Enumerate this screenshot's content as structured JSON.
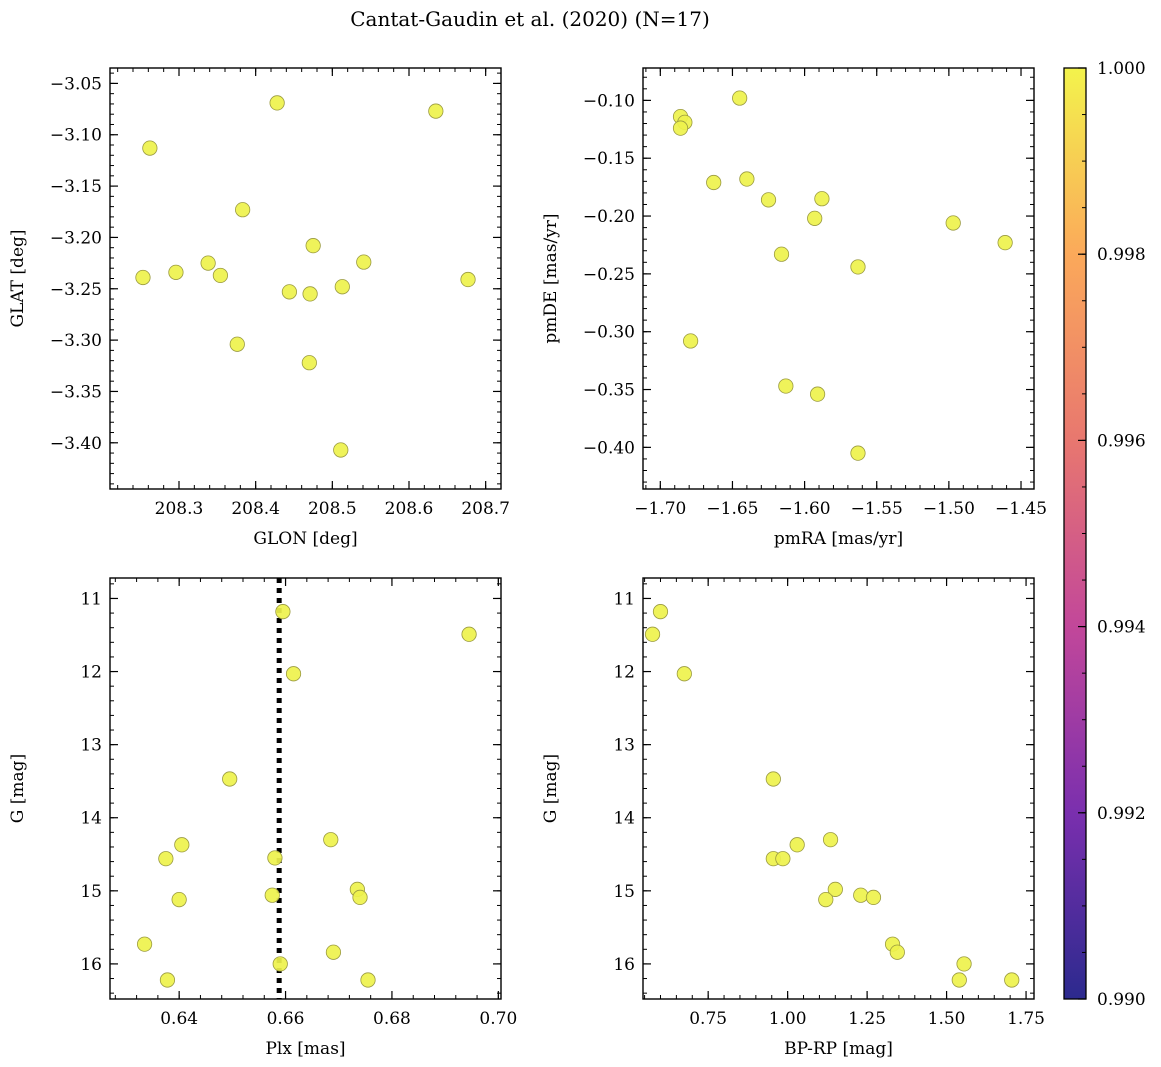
{
  "chart_data": {
    "type": "scatter",
    "title": "Cantat-Gaudin et al. (2020) (N=17)",
    "point_color": "#eef24c",
    "point_edge": "#9a9a40",
    "colorbar": {
      "range": [
        0.99,
        1.0
      ],
      "ticks": [
        "0.990",
        "0.992",
        "0.994",
        "0.996",
        "0.998",
        "1.000"
      ],
      "tick_values": [
        0.99,
        0.992,
        0.994,
        0.996,
        0.998,
        1.0
      ],
      "colors": [
        "#2c2a8e",
        "#7a2fae",
        "#c2479a",
        "#e8776f",
        "#fba95a",
        "#f3f34c"
      ]
    },
    "panels": [
      {
        "id": "glon-glat",
        "xlabel": "GLON [deg]",
        "ylabel": "GLAT [deg]",
        "xlim": [
          208.21,
          208.72
        ],
        "ylim": [
          -3.445,
          -3.035
        ],
        "yinvert": false,
        "xticks": [
          208.3,
          208.4,
          208.5,
          208.6,
          208.7
        ],
        "xticklabels": [
          "208.3",
          "208.4",
          "208.5",
          "208.6",
          "208.7"
        ],
        "yticks": [
          -3.05,
          -3.1,
          -3.15,
          -3.2,
          -3.25,
          -3.3,
          -3.35,
          -3.4
        ],
        "yticklabels": [
          "−3.05",
          "−3.10",
          "−3.15",
          "−3.20",
          "−3.25",
          "−3.30",
          "−3.35",
          "−3.40"
        ],
        "x": [
          208.262,
          208.428,
          208.635,
          208.383,
          208.475,
          208.541,
          208.253,
          208.296,
          208.338,
          208.354,
          208.444,
          208.471,
          208.513,
          208.677,
          208.376,
          208.47,
          208.511
        ],
        "y": [
          -3.113,
          -3.069,
          -3.077,
          -3.173,
          -3.208,
          -3.224,
          -3.239,
          -3.234,
          -3.225,
          -3.237,
          -3.253,
          -3.255,
          -3.248,
          -3.241,
          -3.304,
          -3.322,
          -3.407
        ]
      },
      {
        "id": "pm",
        "xlabel": "pmRA [mas/yr]",
        "ylabel": "pmDE [mas/yr]",
        "xlim": [
          -1.712,
          -1.441
        ],
        "ylim": [
          -0.436,
          -0.072
        ],
        "yinvert": false,
        "xticks": [
          -1.7,
          -1.65,
          -1.6,
          -1.55,
          -1.5,
          -1.45
        ],
        "xticklabels": [
          "−1.70",
          "−1.65",
          "−1.60",
          "−1.55",
          "−1.50",
          "−1.45"
        ],
        "yticks": [
          -0.1,
          -0.15,
          -0.2,
          -0.25,
          -0.3,
          -0.35,
          -0.4
        ],
        "yticklabels": [
          "−0.10",
          "−0.15",
          "−0.20",
          "−0.25",
          "−0.30",
          "−0.35",
          "−0.40"
        ],
        "x": [
          -1.686,
          -1.683,
          -1.686,
          -1.645,
          -1.663,
          -1.64,
          -1.625,
          -1.588,
          -1.593,
          -1.616,
          -1.563,
          -1.497,
          -1.461,
          -1.679,
          -1.613,
          -1.591,
          -1.563
        ],
        "y": [
          -0.114,
          -0.119,
          -0.124,
          -0.098,
          -0.171,
          -0.168,
          -0.186,
          -0.185,
          -0.202,
          -0.233,
          -0.244,
          -0.206,
          -0.223,
          -0.308,
          -0.347,
          -0.354,
          -0.405
        ]
      },
      {
        "id": "plx-g",
        "xlabel": "Plx [mas]",
        "ylabel": "G [mag]",
        "xlim": [
          0.627,
          0.7005
        ],
        "ylim": [
          10.72,
          16.48
        ],
        "yinvert": true,
        "vline": 0.6588,
        "xticks": [
          0.64,
          0.66,
          0.68,
          0.7
        ],
        "xticklabels": [
          "0.64",
          "0.66",
          "0.68",
          "0.70"
        ],
        "yticks": [
          11,
          12,
          13,
          14,
          15,
          16
        ],
        "yticklabels": [
          "11",
          "12",
          "13",
          "14",
          "15",
          "16"
        ],
        "x": [
          0.6595,
          0.6945,
          0.6615,
          0.6495,
          0.6405,
          0.6375,
          0.6685,
          0.658,
          0.6735,
          0.674,
          0.64,
          0.6575,
          0.6335,
          0.669,
          0.659,
          0.6378,
          0.6755
        ],
        "y": [
          11.18,
          11.49,
          12.03,
          13.47,
          14.37,
          14.56,
          14.3,
          14.55,
          14.98,
          15.09,
          15.12,
          15.06,
          15.73,
          15.84,
          16.0,
          16.22,
          16.22
        ]
      },
      {
        "id": "bprp-g",
        "xlabel": "BP-RP [mag]",
        "ylabel": "G [mag]",
        "xlim": [
          0.545,
          1.775
        ],
        "ylim": [
          10.72,
          16.48
        ],
        "yinvert": true,
        "xticks": [
          0.75,
          1.0,
          1.25,
          1.5,
          1.75
        ],
        "xticklabels": [
          "0.75",
          "1.00",
          "1.25",
          "1.50",
          "1.75"
        ],
        "yticks": [
          11,
          12,
          13,
          14,
          15,
          16
        ],
        "yticklabels": [
          "11",
          "12",
          "13",
          "14",
          "15",
          "16"
        ],
        "x": [
          0.6,
          0.575,
          0.675,
          0.955,
          1.03,
          0.955,
          0.985,
          1.135,
          1.15,
          1.12,
          1.23,
          1.27,
          1.33,
          1.345,
          1.555,
          1.54,
          1.705
        ],
        "y": [
          11.18,
          11.49,
          12.03,
          13.47,
          14.37,
          14.56,
          14.56,
          14.3,
          14.98,
          15.12,
          15.06,
          15.09,
          15.73,
          15.84,
          16.0,
          16.22,
          16.22
        ]
      }
    ]
  }
}
